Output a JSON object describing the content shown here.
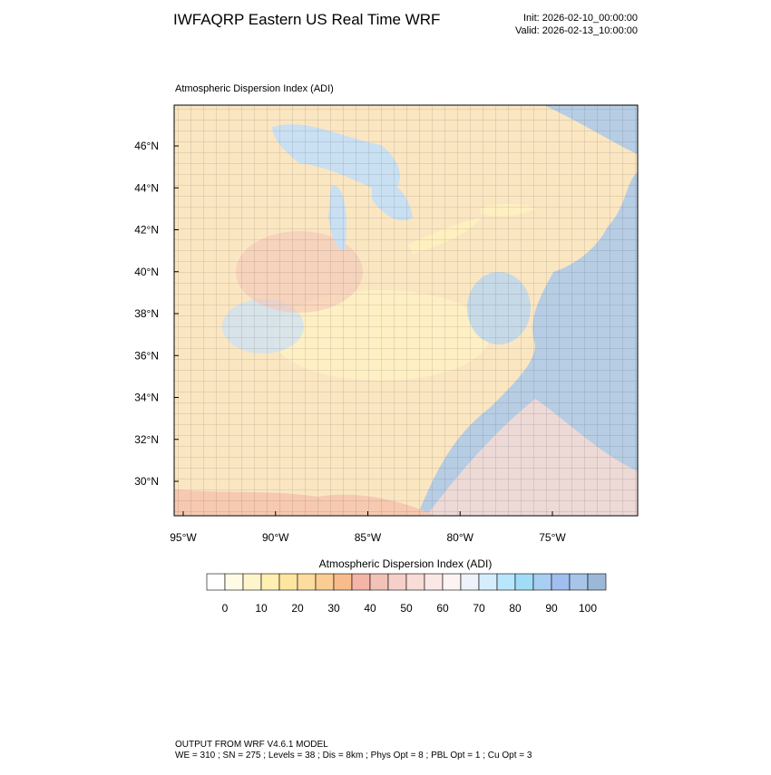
{
  "header": {
    "title": "IWFAQRP Eastern US Real Time WRF",
    "init": "Init: 2026-02-10_00:00:00",
    "valid": "Valid: 2026-02-13_10:00:00"
  },
  "map": {
    "subtitle": "Atmospheric Dispersion Index   (ADI)",
    "lat_ticks": [
      {
        "value": 46,
        "label": "46°N"
      },
      {
        "value": 44,
        "label": "44°N"
      },
      {
        "value": 42,
        "label": "42°N"
      },
      {
        "value": 40,
        "label": "40°N"
      },
      {
        "value": 38,
        "label": "38°N"
      },
      {
        "value": 36,
        "label": "36°N"
      },
      {
        "value": 34,
        "label": "34°N"
      },
      {
        "value": 32,
        "label": "32°N"
      },
      {
        "value": 30,
        "label": "30°N"
      }
    ],
    "lon_ticks": [
      {
        "value": -95,
        "label": "95°W"
      },
      {
        "value": -90,
        "label": "90°W"
      },
      {
        "value": -85,
        "label": "85°W"
      },
      {
        "value": -80,
        "label": "80°W"
      },
      {
        "value": -75,
        "label": "75°W"
      }
    ]
  },
  "colorbar": {
    "title": "Atmospheric Dispersion Index  (ADI)",
    "levels": [
      0,
      5,
      10,
      15,
      20,
      25,
      30,
      35,
      40,
      45,
      50,
      55,
      60,
      65,
      70,
      75,
      80,
      85,
      90,
      95,
      100
    ],
    "ticks": [
      0,
      10,
      20,
      30,
      40,
      50,
      60,
      70,
      80,
      90,
      100
    ],
    "colors": [
      "#ffffff",
      "#fffbe6",
      "#fff5cc",
      "#ffefb3",
      "#ffe6a0",
      "#fddca0",
      "#fbcc94",
      "#f8bc8c",
      "#f5b4a8",
      "#f2c2b8",
      "#f5d0c8",
      "#f8dcd6",
      "#fbe8e6",
      "#fdf3f3",
      "#eef2fb",
      "#d6eefb",
      "#b8e6fb",
      "#a0dcf8",
      "#a8cef2",
      "#a0bef0",
      "#a8c4e8",
      "#9cb8d8"
    ]
  },
  "footer": {
    "line1": "OUTPUT FROM WRF V4.6.1 MODEL",
    "line2": "WE = 310 ; SN = 275 ; Levels = 38 ; Dis = 8km ; Phys Opt = 8 ; PBL Opt = 1 ; Cu Opt = 3"
  }
}
